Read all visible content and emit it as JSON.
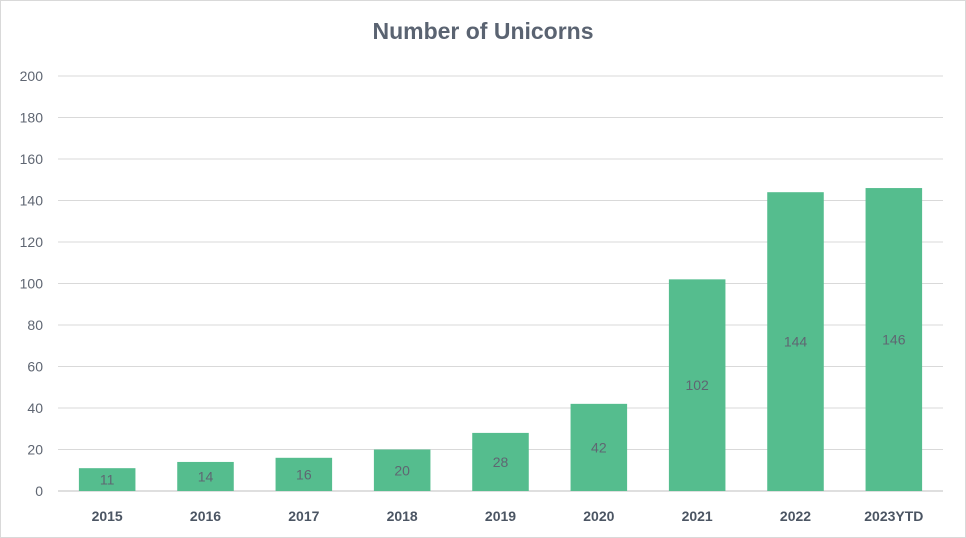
{
  "chart_data": {
    "type": "bar",
    "title": "Number of Unicorns",
    "categories": [
      "2015",
      "2016",
      "2017",
      "2018",
      "2019",
      "2020",
      "2021",
      "2022",
      "2023YTD"
    ],
    "values": [
      11,
      14,
      16,
      20,
      28,
      42,
      102,
      144,
      146
    ],
    "ylim": [
      0,
      200
    ],
    "yticks": [
      0,
      20,
      40,
      60,
      80,
      100,
      120,
      140,
      160,
      180,
      200
    ],
    "grid": true,
    "bar_color": "#55bd8e",
    "data_labels": true
  }
}
